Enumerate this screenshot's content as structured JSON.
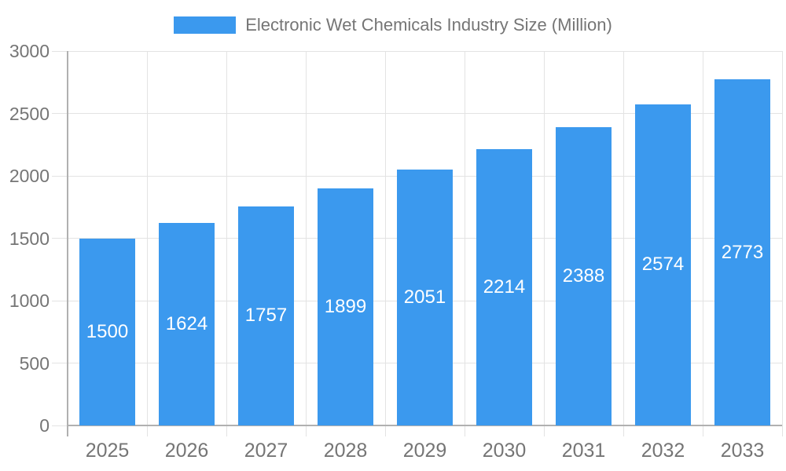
{
  "chart_data": {
    "type": "bar",
    "title": "Electronic Wet Chemicals Industry Size (Million)",
    "legend_position": "top",
    "categories": [
      "2025",
      "2026",
      "2027",
      "2028",
      "2029",
      "2030",
      "2031",
      "2032",
      "2033"
    ],
    "values": [
      1500,
      1624,
      1757,
      1899,
      2051,
      2214,
      2388,
      2574,
      2773
    ],
    "value_labels": [
      "1500",
      "1624",
      "1757",
      "1899",
      "2051",
      "2214",
      "2388",
      "2574",
      "2773"
    ],
    "xlabel": "",
    "ylabel": "",
    "ylim": [
      0,
      3000
    ],
    "y_ticks": [
      0,
      500,
      1000,
      1500,
      2000,
      2500,
      3000
    ],
    "grid": true,
    "colors": {
      "bar": "#3b99ee",
      "grid_line": "#e3e3e3",
      "axis_line": "#b0b0b0",
      "axis_label": "#757575",
      "value_label": "#ffffff",
      "background": "#ffffff"
    }
  }
}
